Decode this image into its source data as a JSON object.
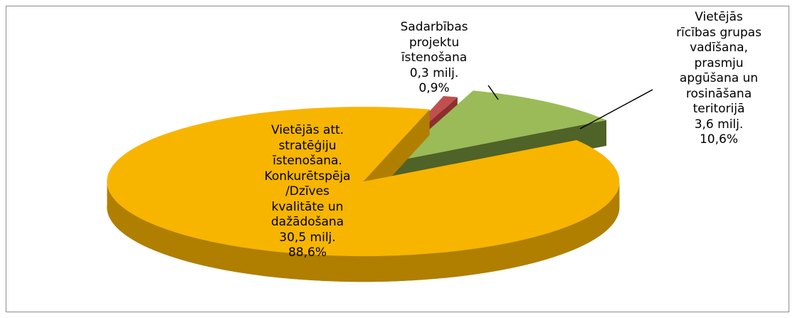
{
  "chart_data": {
    "type": "pie3d",
    "categories": [
      "Sadarbības\nprojektu\nīstenošana",
      "Vietējās\nrīcības grupas\nvadīšana,\nprasmju\napgūšana un\nrosināšana\nteritorijā",
      "Vietējās att.\nstratēģiju\nīstenošana.\nKonkurētspēja\n/Dzīves\nkvalitāte un\ndažādošana"
    ],
    "values": [
      0.9,
      10.6,
      88.6
    ],
    "value_labels": [
      "0,9%",
      "10,6%",
      "88,6%"
    ],
    "amount_labels": [
      "0,3 milj.",
      "3,6 milj.",
      "30,5 milj."
    ],
    "colors": [
      "#c0504d",
      "#9bbb59",
      "#f7b500"
    ],
    "side_colors": [
      "#8c2f2c",
      "#4f6228",
      "#b07f00"
    ]
  }
}
